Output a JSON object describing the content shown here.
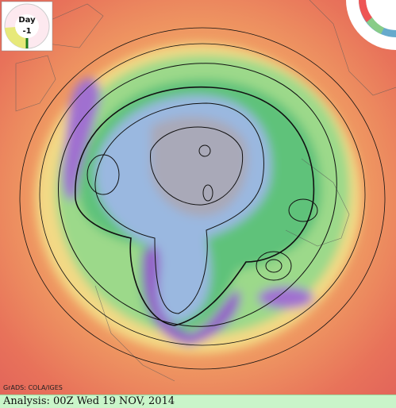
{
  "badge": {
    "label": "Day",
    "value": "-1"
  },
  "credit": "GrADS: COLA/IGES",
  "caption": "Analysis: 00Z Wed 19 NOV, 2014"
}
